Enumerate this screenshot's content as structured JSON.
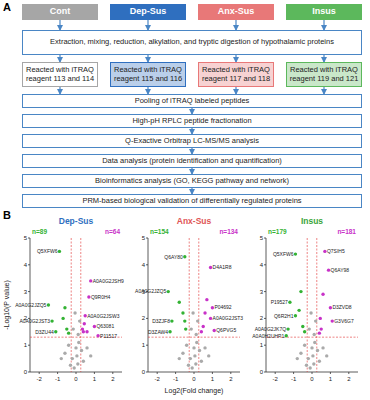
{
  "panel_labels": [
    "A",
    "B"
  ],
  "diagram": {
    "groups": [
      {
        "label": "Cont",
        "reagent": "Reacted with iTRAQ reagent 113 and 114",
        "color": "#a6a6a6"
      },
      {
        "label": "Dep-Sus",
        "reagent": "Reacted with iTRAQ reagent 115 and 116",
        "color": "#2f6fbf"
      },
      {
        "label": "Anx-Sus",
        "reagent": "Reacted with iTRAQ reagent 117 and 118",
        "color": "#e87878"
      },
      {
        "label": "Insus",
        "reagent": "Reacted with iTRAQ reagent 119 and 121",
        "color": "#5cb85c"
      }
    ],
    "steps": [
      "Extraction, mixing, reduction, alkylation, and tryptic digestion of hypothalamic proteins",
      "Pooling of iTRAQ labeled peptides",
      "High-pH RPLC peptide fractionation",
      "Q-Exactive Orbitrap LC-MS/MS analysis",
      "Data analysis (protein identification and quantification)",
      "Bioinformatics analysis (GO, KEGG pathway and network)",
      "PRM-based biological validation of differentially regulated proteins"
    ]
  },
  "chart_data": [
    {
      "type": "scatter",
      "title": "Dep-Sus",
      "y_label": "-Log10(P value)",
      "annotations": [
        {
          "text": "n=89",
          "color": "#33b233"
        },
        {
          "text": "n=64",
          "color": "#c832c8"
        }
      ],
      "xlim": [
        -2.5,
        2.5
      ],
      "xticks": [
        -2,
        -1,
        0,
        1,
        2
      ],
      "ylim": [
        0,
        5
      ],
      "yticks": [
        0,
        1,
        2,
        3,
        4,
        5
      ],
      "grid": false,
      "thresholds": {
        "x": [
          -0.26,
          0.26
        ],
        "y": 1.3
      },
      "x": [
        -0.9,
        0.8,
        0.7,
        -1.5,
        -1.3,
        -1.1,
        0.5,
        1.0,
        1.2,
        -0.5,
        -0.7,
        -0.4,
        -0.6,
        0.4,
        0.45,
        0.35,
        0.6,
        -0.2,
        0.1,
        0.3,
        -0.4,
        0.15,
        -0.1,
        0.05,
        -0.3,
        0.4,
        -0.6,
        0.6,
        -0.15,
        0.2,
        0.8,
        -0.8,
        0.0,
        -0.05,
        0.12
      ],
      "values": [
        4.5,
        3.4,
        2.8,
        2.5,
        1.9,
        1.5,
        2.1,
        1.7,
        1.35,
        1.6,
        2.0,
        1.45,
        2.4,
        1.5,
        1.8,
        1.6,
        1.5,
        0.5,
        0.3,
        0.8,
        1.0,
        1.1,
        0.15,
        0.6,
        0.25,
        0.4,
        0.7,
        0.9,
        1.6,
        1.9,
        0.6,
        0.5,
        0.9,
        2.2,
        1.4
      ],
      "colors": [
        "#33b233",
        "#c832c8",
        "#c832c8",
        "#33b233",
        "#33b233",
        "#33b233",
        "#c832c8",
        "#c832c8",
        "#c832c8",
        "#33b233",
        "#33b233",
        "#33b233",
        "#33b233",
        "#c832c8",
        "#c832c8",
        "#c832c8",
        "#c832c8",
        "#aaaaaa",
        "#aaaaaa",
        "#aaaaaa",
        "#aaaaaa",
        "#aaaaaa",
        "#aaaaaa",
        "#aaaaaa",
        "#aaaaaa",
        "#aaaaaa",
        "#aaaaaa",
        "#aaaaaa",
        "#aaaaaa",
        "#aaaaaa",
        "#aaaaaa",
        "#aaaaaa",
        "#aaaaaa",
        "#aaaaaa",
        "#aaaaaa"
      ],
      "point_labels": [
        "Q5XFW6",
        "A0A0G2JSH9",
        "Q9R0H4",
        "A0A0G2JZQ5",
        "A0A0G2JST3",
        "D3ZU44",
        "A0A0G2JSW3",
        "Q63081",
        "P11517",
        null,
        null,
        null,
        null,
        null,
        null,
        null,
        null,
        null,
        null,
        null,
        null,
        null,
        null,
        null,
        null,
        null,
        null,
        null,
        null,
        null,
        null,
        null,
        null,
        null,
        null
      ]
    },
    {
      "type": "scatter",
      "title": "Anx-Sus",
      "x_label": "Log2(Fold change)",
      "annotations": [
        {
          "text": "n=154",
          "color": "#33b233"
        },
        {
          "text": "n=134",
          "color": "#c832c8"
        }
      ],
      "xlim": [
        -2.5,
        2.5
      ],
      "xticks": [
        -2,
        -1,
        0,
        1,
        2
      ],
      "ylim": [
        0,
        5
      ],
      "yticks": [
        0,
        1,
        2,
        3,
        4,
        5
      ],
      "grid": false,
      "thresholds": {
        "x": [
          -0.26,
          0.26
        ],
        "y": 1.3
      },
      "x": [
        -0.5,
        0.9,
        -1.4,
        1.0,
        0.9,
        -1.2,
        -1.3,
        1.1,
        -0.6,
        -0.8,
        -0.45,
        -0.5,
        0.5,
        0.6,
        0.4,
        0.7,
        -0.2,
        0.1,
        0.3,
        -0.4,
        0.15,
        -0.1,
        0.05,
        -0.3,
        0.4,
        -0.6,
        0.6,
        -0.15,
        0.2,
        0.8,
        -0.8,
        0.0,
        -0.05,
        0.12
      ],
      "values": [
        4.3,
        3.9,
        3.0,
        2.4,
        2.0,
        1.9,
        1.5,
        1.55,
        2.2,
        2.6,
        1.6,
        1.9,
        1.7,
        2.2,
        1.5,
        2.7,
        0.5,
        0.3,
        0.8,
        1.0,
        1.1,
        0.15,
        0.6,
        0.25,
        0.4,
        0.7,
        0.9,
        1.6,
        1.9,
        0.6,
        0.5,
        0.9,
        2.2,
        1.4
      ],
      "colors": [
        "#33b233",
        "#c832c8",
        "#33b233",
        "#c832c8",
        "#c832c8",
        "#33b233",
        "#33b233",
        "#c832c8",
        "#33b233",
        "#33b233",
        "#33b233",
        "#33b233",
        "#c832c8",
        "#c832c8",
        "#c832c8",
        "#c832c8",
        "#aaaaaa",
        "#aaaaaa",
        "#aaaaaa",
        "#aaaaaa",
        "#aaaaaa",
        "#aaaaaa",
        "#aaaaaa",
        "#aaaaaa",
        "#aaaaaa",
        "#aaaaaa",
        "#aaaaaa",
        "#aaaaaa",
        "#aaaaaa",
        "#aaaaaa",
        "#aaaaaa",
        "#aaaaaa",
        "#aaaaaa",
        "#aaaaaa"
      ],
      "point_labels": [
        "Q6AY80",
        "D4A1R8",
        "A0A0G2JZQ5",
        "P04692",
        "A0A0G2JST3",
        "D3ZJF8",
        "D3ZAW4",
        "Q6PVG5",
        null,
        null,
        null,
        null,
        null,
        null,
        null,
        null,
        null,
        null,
        null,
        null,
        null,
        null,
        null,
        null,
        null,
        null,
        null,
        null,
        null,
        null,
        null,
        null,
        null,
        null
      ]
    },
    {
      "type": "scatter",
      "title": "Insus",
      "annotations": [
        {
          "text": "n=179",
          "color": "#33b233"
        },
        {
          "text": "n=181",
          "color": "#c832c8"
        }
      ],
      "xlim": [
        -2.5,
        2.5
      ],
      "xticks": [
        -2,
        -1,
        0,
        1,
        2
      ],
      "ylim": [
        0,
        5
      ],
      "yticks": [
        0,
        1,
        2,
        3,
        4,
        5
      ],
      "grid": false,
      "thresholds": {
        "x": [
          -0.26,
          0.26
        ],
        "y": 1.3
      },
      "x": [
        -0.9,
        0.7,
        0.9,
        -1.2,
        -0.9,
        1.0,
        1.1,
        -1.3,
        -1.4,
        -0.5,
        -0.7,
        -0.4,
        -0.6,
        0.5,
        0.45,
        0.6,
        0.4,
        -0.2,
        0.1,
        0.3,
        -0.4,
        0.15,
        -0.1,
        0.05,
        -0.3,
        0.4,
        -0.6,
        0.6,
        -0.15,
        0.2,
        0.8,
        -0.8,
        0.0,
        -0.05,
        0.12
      ],
      "values": [
        4.4,
        4.5,
        3.8,
        2.6,
        2.1,
        2.4,
        1.9,
        1.6,
        1.35,
        1.7,
        2.3,
        1.5,
        3.0,
        1.6,
        2.0,
        2.9,
        1.45,
        0.5,
        0.3,
        0.8,
        1.0,
        1.1,
        0.15,
        0.6,
        0.25,
        0.4,
        0.7,
        0.9,
        1.6,
        1.9,
        0.6,
        0.5,
        0.9,
        2.2,
        1.4
      ],
      "colors": [
        "#33b233",
        "#c832c8",
        "#c832c8",
        "#33b233",
        "#33b233",
        "#c832c8",
        "#c832c8",
        "#33b233",
        "#33b233",
        "#33b233",
        "#33b233",
        "#33b233",
        "#33b233",
        "#c832c8",
        "#c832c8",
        "#c832c8",
        "#c832c8",
        "#aaaaaa",
        "#aaaaaa",
        "#aaaaaa",
        "#aaaaaa",
        "#aaaaaa",
        "#aaaaaa",
        "#aaaaaa",
        "#aaaaaa",
        "#aaaaaa",
        "#aaaaaa",
        "#aaaaaa",
        "#aaaaaa",
        "#aaaaaa",
        "#aaaaaa",
        "#aaaaaa",
        "#aaaaaa",
        "#aaaaaa",
        "#aaaaaa"
      ],
      "point_labels": [
        "Q5XFW6",
        "Q7SIH5",
        "Q6AY98",
        "P19527",
        "Q6R2H1",
        "D3ZVD8",
        "G3V6G7",
        "A0A0G2JK7Q",
        "A0A0H2UHP1",
        null,
        null,
        null,
        null,
        null,
        null,
        null,
        null,
        null,
        null,
        null,
        null,
        null,
        null,
        null,
        null,
        null,
        null,
        null,
        null,
        null,
        null,
        null,
        null,
        null,
        null
      ]
    }
  ]
}
